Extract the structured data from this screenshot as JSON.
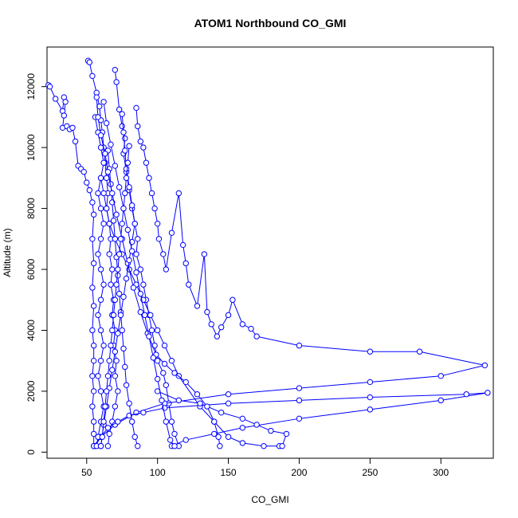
{
  "chart_data": {
    "type": "line",
    "title": "ATOM1 Northbound CO_GMI",
    "xlabel": "CO_GMI",
    "ylabel": "Altitude (m)",
    "xlim": [
      22,
      337
    ],
    "ylim": [
      -200,
      13300
    ],
    "xticks": [
      50,
      100,
      150,
      200,
      250,
      300
    ],
    "yticks": [
      0,
      2000,
      4000,
      6000,
      8000,
      10000,
      12000
    ],
    "grid": false,
    "marker": "open-circle",
    "color": "#0000ff",
    "series": [
      {
        "points": [
          [
            23,
            12050
          ],
          [
            24,
            12000
          ],
          [
            28,
            11600
          ],
          [
            33,
            11200
          ],
          [
            34,
            11650
          ],
          [
            35,
            11500
          ],
          [
            34,
            11050
          ],
          [
            33,
            10650
          ],
          [
            36,
            10700
          ],
          [
            38,
            10600
          ],
          [
            40,
            10650
          ],
          [
            42,
            10200
          ],
          [
            44,
            9400
          ],
          [
            46,
            9300
          ],
          [
            48,
            9200
          ],
          [
            50,
            8850
          ],
          [
            52,
            8600
          ],
          [
            54,
            8200
          ],
          [
            55,
            7800
          ],
          [
            54,
            7000
          ],
          [
            55,
            6200
          ],
          [
            54,
            5400
          ],
          [
            55,
            4800
          ],
          [
            54,
            4000
          ],
          [
            55,
            3500
          ],
          [
            55,
            3000
          ],
          [
            54,
            2500
          ],
          [
            55,
            2000
          ],
          [
            54,
            1500
          ],
          [
            55,
            1000
          ],
          [
            55,
            600
          ],
          [
            55,
            200
          ]
        ]
      },
      {
        "points": [
          [
            51,
            12850
          ],
          [
            52,
            12800
          ],
          [
            54,
            12350
          ],
          [
            57,
            11800
          ],
          [
            59,
            11350
          ],
          [
            60,
            10900
          ],
          [
            61,
            10500
          ],
          [
            62,
            10000
          ],
          [
            63,
            9500
          ],
          [
            64,
            9000
          ],
          [
            65,
            8500
          ],
          [
            64,
            8000
          ],
          [
            66,
            7500
          ],
          [
            67,
            7000
          ],
          [
            66,
            6500
          ],
          [
            68,
            6000
          ],
          [
            67,
            5500
          ],
          [
            69,
            5000
          ],
          [
            68,
            4500
          ],
          [
            70,
            4000
          ],
          [
            69,
            3500
          ],
          [
            71,
            3000
          ],
          [
            70,
            2500
          ],
          [
            72,
            2000
          ],
          [
            70,
            1500
          ],
          [
            68,
            1000
          ],
          [
            66,
            600
          ],
          [
            65,
            200
          ]
        ]
      },
      {
        "points": [
          [
            70,
            12550
          ],
          [
            71,
            12150
          ],
          [
            73,
            11250
          ],
          [
            75,
            10700
          ],
          [
            77,
            10300
          ],
          [
            76,
            9800
          ],
          [
            78,
            9200
          ],
          [
            80,
            8600
          ],
          [
            82,
            8000
          ],
          [
            84,
            7500
          ],
          [
            86,
            7000
          ],
          [
            85,
            6500
          ],
          [
            88,
            6000
          ],
          [
            90,
            5500
          ],
          [
            92,
            5000
          ],
          [
            94,
            4500
          ],
          [
            96,
            4000
          ],
          [
            98,
            3500
          ],
          [
            100,
            3000
          ],
          [
            104,
            2600
          ],
          [
            106,
            2200
          ],
          [
            108,
            1600
          ],
          [
            110,
            1000
          ],
          [
            112,
            600
          ],
          [
            115,
            200
          ]
        ]
      },
      {
        "points": [
          [
            85,
            11300
          ],
          [
            86,
            10700
          ],
          [
            88,
            10200
          ],
          [
            90,
            10000
          ],
          [
            92,
            9500
          ],
          [
            94,
            9000
          ],
          [
            96,
            8500
          ],
          [
            98,
            8000
          ],
          [
            100,
            7500
          ],
          [
            101,
            7000
          ],
          [
            104,
            6500
          ],
          [
            106,
            6000
          ],
          [
            110,
            7200
          ],
          [
            115,
            8500
          ],
          [
            118,
            6800
          ],
          [
            120,
            6200
          ],
          [
            122,
            5500
          ],
          [
            128,
            4800
          ],
          [
            133,
            6500
          ],
          [
            135,
            4600
          ],
          [
            138,
            4200
          ],
          [
            142,
            3800
          ],
          [
            145,
            4100
          ],
          [
            150,
            4500
          ],
          [
            153,
            5000
          ],
          [
            160,
            4200
          ],
          [
            166,
            4050
          ],
          [
            170,
            3800
          ],
          [
            200,
            3500
          ],
          [
            250,
            3300
          ],
          [
            285,
            3300
          ],
          [
            331,
            2850
          ],
          [
            300,
            2500
          ],
          [
            250,
            2300
          ],
          [
            200,
            2100
          ],
          [
            150,
            1900
          ],
          [
            105,
            1600
          ],
          [
            85,
            1300
          ],
          [
            70,
            900
          ],
          [
            60,
            500
          ],
          [
            56,
            200
          ]
        ]
      },
      {
        "points": [
          [
            55,
            200
          ],
          [
            60,
            500
          ],
          [
            65,
            800
          ],
          [
            72,
            1000
          ],
          [
            80,
            1200
          ],
          [
            90,
            1300
          ],
          [
            105,
            1450
          ],
          [
            150,
            1600
          ],
          [
            200,
            1700
          ],
          [
            250,
            1800
          ],
          [
            318,
            1900
          ],
          [
            333,
            1950
          ],
          [
            300,
            1700
          ],
          [
            250,
            1400
          ],
          [
            200,
            1100
          ],
          [
            160,
            800
          ],
          [
            140,
            600
          ],
          [
            120,
            400
          ],
          [
            110,
            200
          ]
        ]
      },
      {
        "points": [
          [
            60,
            9000
          ],
          [
            62,
            8500
          ],
          [
            64,
            8000
          ],
          [
            66,
            7500
          ],
          [
            70,
            7000
          ],
          [
            75,
            6500
          ],
          [
            80,
            6000
          ],
          [
            85,
            5500
          ],
          [
            90,
            5000
          ],
          [
            95,
            4500
          ],
          [
            100,
            4000
          ],
          [
            105,
            3500
          ],
          [
            110,
            3000
          ],
          [
            115,
            2500
          ],
          [
            130,
            1500
          ],
          [
            140,
            1000
          ],
          [
            150,
            500
          ],
          [
            160,
            300
          ],
          [
            175,
            200
          ],
          [
            186,
            200
          ],
          [
            188,
            200
          ],
          [
            191,
            600
          ],
          [
            180,
            700
          ],
          [
            170,
            900
          ],
          [
            160,
            1100
          ],
          [
            145,
            1300
          ],
          [
            130,
            1600
          ],
          [
            115,
            1700
          ],
          [
            100,
            2000
          ]
        ]
      },
      {
        "points": [
          [
            65,
            9900
          ],
          [
            66,
            9300
          ],
          [
            67,
            8800
          ],
          [
            68,
            8200
          ],
          [
            69,
            7600
          ],
          [
            70,
            7000
          ],
          [
            71,
            6400
          ],
          [
            72,
            5800
          ],
          [
            73,
            5200
          ],
          [
            74,
            4600
          ],
          [
            75,
            4000
          ],
          [
            76,
            3400
          ],
          [
            77,
            2800
          ],
          [
            78,
            2200
          ],
          [
            80,
            1600
          ],
          [
            82,
            1000
          ],
          [
            84,
            500
          ],
          [
            86,
            200
          ]
        ]
      },
      {
        "points": [
          [
            56,
            11000
          ],
          [
            58,
            10500
          ],
          [
            60,
            10000
          ],
          [
            62,
            9500
          ],
          [
            60,
            9000
          ],
          [
            58,
            8500
          ],
          [
            60,
            8000
          ],
          [
            62,
            7500
          ],
          [
            60,
            7000
          ],
          [
            58,
            6500
          ],
          [
            60,
            6000
          ],
          [
            62,
            5500
          ],
          [
            60,
            5000
          ],
          [
            58,
            4500
          ],
          [
            60,
            4000
          ],
          [
            62,
            3500
          ],
          [
            60,
            3000
          ],
          [
            58,
            2500
          ],
          [
            60,
            2000
          ],
          [
            62,
            1500
          ],
          [
            60,
            1000
          ],
          [
            58,
            500
          ],
          [
            57,
            200
          ]
        ]
      },
      {
        "points": [
          [
            57,
            11650
          ],
          [
            58,
            11000
          ],
          [
            60,
            10400
          ],
          [
            63,
            9800
          ],
          [
            65,
            9200
          ],
          [
            68,
            8500
          ],
          [
            71,
            7800
          ],
          [
            75,
            7000
          ],
          [
            79,
            6200
          ],
          [
            83,
            5400
          ],
          [
            88,
            4600
          ],
          [
            93,
            3900
          ],
          [
            99,
            3200
          ],
          [
            105,
            2900
          ],
          [
            112,
            2600
          ],
          [
            120,
            2300
          ],
          [
            128,
            1900
          ],
          [
            135,
            1500
          ],
          [
            140,
            1000
          ],
          [
            143,
            500
          ],
          [
            144,
            200
          ]
        ]
      },
      {
        "points": [
          [
            75,
            11100
          ],
          [
            76,
            10500
          ],
          [
            77,
            9900
          ],
          [
            78,
            9300
          ],
          [
            80,
            8700
          ],
          [
            82,
            8100
          ],
          [
            84,
            7500
          ],
          [
            82,
            6900
          ],
          [
            80,
            6300
          ],
          [
            78,
            5700
          ],
          [
            76,
            5100
          ],
          [
            74,
            4500
          ],
          [
            72,
            3900
          ],
          [
            70,
            3300
          ],
          [
            68,
            2700
          ],
          [
            66,
            2100
          ],
          [
            64,
            1500
          ],
          [
            62,
            900
          ],
          [
            60,
            200
          ]
        ]
      },
      {
        "points": [
          [
            62,
            11500
          ],
          [
            64,
            10800
          ],
          [
            67,
            10100
          ],
          [
            70,
            9400
          ],
          [
            73,
            8700
          ],
          [
            76,
            8000
          ],
          [
            79,
            7300
          ],
          [
            82,
            6600
          ],
          [
            85,
            5900
          ],
          [
            88,
            5200
          ],
          [
            91,
            4500
          ],
          [
            94,
            3800
          ],
          [
            97,
            3100
          ],
          [
            100,
            2400
          ],
          [
            103,
            1700
          ],
          [
            106,
            1000
          ],
          [
            109,
            400
          ],
          [
            112,
            200
          ]
        ]
      },
      {
        "points": [
          [
            80,
            10050
          ],
          [
            79,
            9500
          ],
          [
            78,
            9000
          ],
          [
            77,
            8500
          ],
          [
            76,
            8000
          ],
          [
            75,
            7500
          ],
          [
            74,
            7000
          ],
          [
            73,
            6500
          ],
          [
            72,
            6000
          ],
          [
            71,
            5500
          ],
          [
            70,
            5000
          ],
          [
            69,
            4500
          ],
          [
            68,
            4000
          ],
          [
            67,
            3500
          ],
          [
            66,
            3000
          ],
          [
            65,
            2500
          ],
          [
            64,
            2000
          ],
          [
            63,
            1500
          ],
          [
            62,
            1000
          ],
          [
            61,
            500
          ],
          [
            60,
            200
          ]
        ]
      }
    ]
  }
}
